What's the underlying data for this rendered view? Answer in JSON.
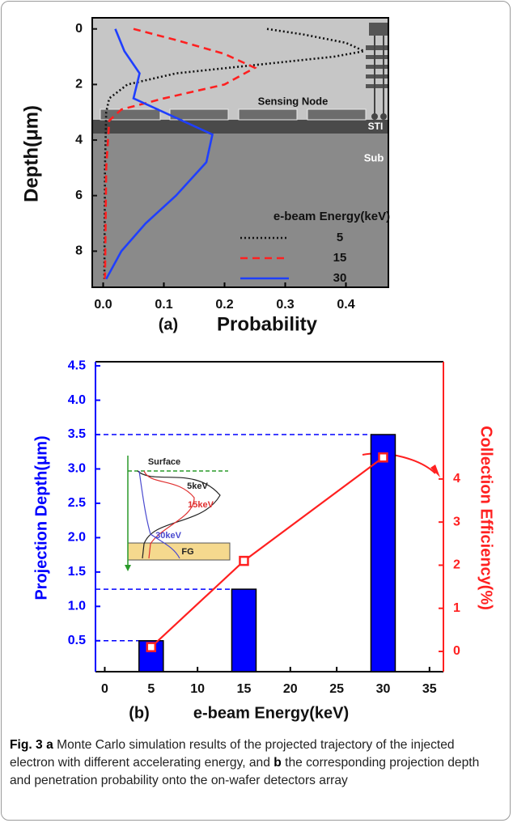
{
  "chart_data": [
    {
      "type": "line",
      "xlabel": "Probability",
      "ylabel": "Depth(μm)",
      "panel": "(a)",
      "xlim": [
        -0.018,
        0.47
      ],
      "xticks": [
        {
          "value": 0,
          "label": "0.0"
        },
        0.1,
        0.2,
        0.3,
        0.4
      ],
      "ylim": [
        9.3,
        -0.4
      ],
      "yticks": [
        0,
        2,
        4,
        6,
        8
      ],
      "legend": "lower right",
      "legend_title": "e-beam Energy(keV)",
      "annotations": [
        "Sensing Node",
        "STI",
        "Sub"
      ],
      "series": [
        {
          "name": "5",
          "color": "#111111",
          "style": "dotted",
          "x": [
            0.27,
            0.33,
            0.4,
            0.43,
            0.38,
            0.25,
            0.12,
            0.04,
            0.01,
            0.005,
            0.003,
            0.002
          ],
          "values": [
            0,
            0.2,
            0.5,
            0.8,
            1.0,
            1.3,
            1.6,
            2.0,
            2.5,
            3.0,
            5.0,
            9.0
          ]
        },
        {
          "name": "15",
          "color": "#ff2020",
          "style": "dashed",
          "x": [
            0.05,
            0.12,
            0.2,
            0.25,
            0.2,
            0.1,
            0.03,
            0.01,
            0.005,
            0.003
          ],
          "values": [
            0,
            0.4,
            0.9,
            1.4,
            2.0,
            2.5,
            2.9,
            3.3,
            5.0,
            9.0
          ]
        },
        {
          "name": "30",
          "color": "#1f3fff",
          "style": "solid",
          "x": [
            0.02,
            0.035,
            0.06,
            0.05,
            0.12,
            0.18,
            0.17,
            0.12,
            0.07,
            0.03,
            0.005
          ],
          "values": [
            0,
            0.8,
            1.6,
            2.5,
            3.2,
            3.8,
            4.8,
            6.0,
            7.0,
            8.0,
            9.0
          ]
        }
      ]
    },
    {
      "type": "bar",
      "xlabel": "e-beam Energy(keV)",
      "ylabel": "Projection Depth(μm)",
      "y2label": "Collection Efficiency(%)",
      "panel": "(b)",
      "x": [
        5,
        15,
        30
      ],
      "xlim": [
        -1,
        36.5
      ],
      "xticks": [
        0,
        5,
        10,
        15,
        20,
        25,
        30,
        35
      ],
      "ylim": [
        0.05,
        4.56
      ],
      "yticks": [
        0.5,
        {
          "value": 1,
          "label": "1.0"
        },
        1.5,
        {
          "value": 2,
          "label": "2.0"
        },
        2.5,
        {
          "value": 3,
          "label": "3.0"
        },
        3.5,
        {
          "value": 4,
          "label": "4.0"
        },
        4.5
      ],
      "y2lim": [
        -0.47,
        6.72
      ],
      "y2ticks": [
        0,
        1,
        2,
        3,
        4
      ],
      "annotations": [
        "Surface",
        "5keV",
        "15keV",
        "30keV",
        "FG"
      ],
      "series": [
        {
          "color": "#0000ff",
          "values": [
            0.5,
            1.25,
            3.5
          ]
        },
        {
          "type": "line",
          "axis": "y2",
          "color": "#ff2020",
          "values": [
            0.1,
            2.1,
            4.5
          ]
        }
      ]
    }
  ],
  "caption": {
    "label": "Fig. 3",
    "a": "a",
    "a_text": "Monte Carlo simulation results of the projected trajectory of the injected electron with different accelerating energy, and",
    "b": "b",
    "b_text": "the corresponding projection depth and penetration probability onto the on-wafer detectors array"
  }
}
